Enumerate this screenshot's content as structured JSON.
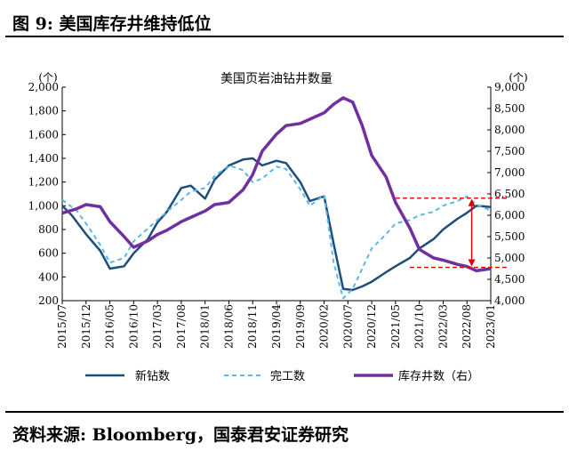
{
  "header": {
    "title": "图 9:  美国库存井维持低位"
  },
  "footer": {
    "source": "资料来源:  Bloomberg，国泰君安证券研究"
  },
  "colors": {
    "drilled": "#1F4E79",
    "completed": "#5BB8E8",
    "duc": "#7030A0",
    "annotation": "#E00000"
  },
  "chart_data": {
    "type": "line",
    "title": "美国页岩油钻井数量",
    "y_left": {
      "unit_label": "(个)",
      "min": 200,
      "max": 2000,
      "ticks": [
        200,
        400,
        600,
        800,
        1000,
        1200,
        1400,
        1600,
        1800,
        2000
      ],
      "tick_labels": [
        "200",
        "400",
        "600",
        "800",
        "1,000",
        "1,200",
        "1,400",
        "1,600",
        "1,800",
        "2,000"
      ]
    },
    "y_right": {
      "unit_label": "(个)",
      "min": 4000,
      "max": 9000,
      "ticks": [
        4000,
        4500,
        5000,
        5500,
        6000,
        6500,
        7000,
        7500,
        8000,
        8500,
        9000
      ],
      "tick_labels": [
        "4,000",
        "4,500",
        "5,000",
        "5,500",
        "6,000",
        "6,500",
        "7,000",
        "7,500",
        "8,000",
        "8,500",
        "9,000"
      ]
    },
    "x_tick_labels": [
      "2015/07",
      "2015/12",
      "2016/05",
      "2016/10",
      "2017/03",
      "2017/08",
      "2018/01",
      "2018/06",
      "2018/11",
      "2019/04",
      "2019/09",
      "2020/02",
      "2020/07",
      "2020/12",
      "2021/05",
      "2021/10",
      "2022/03",
      "2022/08",
      "2023/01"
    ],
    "series": [
      {
        "name": "新钻数",
        "axis": "left",
        "style": "solid",
        "points": [
          [
            "2015/07",
            1000
          ],
          [
            "2015/09",
            920
          ],
          [
            "2015/12",
            760
          ],
          [
            "2016/03",
            620
          ],
          [
            "2016/05",
            470
          ],
          [
            "2016/08",
            490
          ],
          [
            "2016/10",
            600
          ],
          [
            "2017/01",
            720
          ],
          [
            "2017/03",
            860
          ],
          [
            "2017/05",
            950
          ],
          [
            "2017/08",
            1150
          ],
          [
            "2017/10",
            1170
          ],
          [
            "2018/01",
            1060
          ],
          [
            "2018/03",
            1220
          ],
          [
            "2018/06",
            1340
          ],
          [
            "2018/09",
            1390
          ],
          [
            "2018/11",
            1400
          ],
          [
            "2019/01",
            1340
          ],
          [
            "2019/04",
            1380
          ],
          [
            "2019/06",
            1360
          ],
          [
            "2019/09",
            1200
          ],
          [
            "2019/11",
            1040
          ],
          [
            "2020/02",
            1080
          ],
          [
            "2020/04",
            680
          ],
          [
            "2020/06",
            300
          ],
          [
            "2020/08",
            290
          ],
          [
            "2020/10",
            320
          ],
          [
            "2020/12",
            360
          ],
          [
            "2021/03",
            440
          ],
          [
            "2021/05",
            490
          ],
          [
            "2021/08",
            560
          ],
          [
            "2021/10",
            640
          ],
          [
            "2022/01",
            720
          ],
          [
            "2022/03",
            800
          ],
          [
            "2022/06",
            890
          ],
          [
            "2022/08",
            940
          ],
          [
            "2022/10",
            1000
          ],
          [
            "2023/01",
            990
          ]
        ]
      },
      {
        "name": "完工数",
        "axis": "left",
        "style": "dashed",
        "points": [
          [
            "2015/07",
            1050
          ],
          [
            "2015/10",
            960
          ],
          [
            "2015/12",
            850
          ],
          [
            "2016/03",
            670
          ],
          [
            "2016/05",
            520
          ],
          [
            "2016/08",
            560
          ],
          [
            "2016/10",
            700
          ],
          [
            "2017/01",
            810
          ],
          [
            "2017/03",
            880
          ],
          [
            "2017/05",
            950
          ],
          [
            "2017/08",
            1050
          ],
          [
            "2017/10",
            1120
          ],
          [
            "2018/01",
            1150
          ],
          [
            "2018/03",
            1250
          ],
          [
            "2018/06",
            1340
          ],
          [
            "2018/09",
            1300
          ],
          [
            "2018/11",
            1200
          ],
          [
            "2019/01",
            1230
          ],
          [
            "2019/04",
            1330
          ],
          [
            "2019/06",
            1310
          ],
          [
            "2019/09",
            1140
          ],
          [
            "2019/11",
            1000
          ],
          [
            "2020/02",
            1090
          ],
          [
            "2020/04",
            520
          ],
          [
            "2020/06",
            220
          ],
          [
            "2020/08",
            300
          ],
          [
            "2020/10",
            470
          ],
          [
            "2020/12",
            640
          ],
          [
            "2021/03",
            760
          ],
          [
            "2021/05",
            850
          ],
          [
            "2021/08",
            880
          ],
          [
            "2021/10",
            920
          ],
          [
            "2022/01",
            950
          ],
          [
            "2022/03",
            1000
          ],
          [
            "2022/06",
            1040
          ],
          [
            "2022/08",
            1080
          ],
          [
            "2022/10",
            1010
          ],
          [
            "2023/01",
            960
          ]
        ]
      },
      {
        "name": "库存井数（右）",
        "axis": "right",
        "style": "solid",
        "points": [
          [
            "2015/07",
            6050
          ],
          [
            "2015/10",
            6150
          ],
          [
            "2015/12",
            6250
          ],
          [
            "2016/03",
            6200
          ],
          [
            "2016/05",
            5850
          ],
          [
            "2016/08",
            5500
          ],
          [
            "2016/10",
            5250
          ],
          [
            "2017/01",
            5400
          ],
          [
            "2017/03",
            5550
          ],
          [
            "2017/05",
            5650
          ],
          [
            "2017/08",
            5850
          ],
          [
            "2017/10",
            5950
          ],
          [
            "2018/01",
            6100
          ],
          [
            "2018/03",
            6250
          ],
          [
            "2018/06",
            6300
          ],
          [
            "2018/09",
            6600
          ],
          [
            "2018/11",
            6950
          ],
          [
            "2019/01",
            7500
          ],
          [
            "2019/04",
            7900
          ],
          [
            "2019/06",
            8100
          ],
          [
            "2019/09",
            8150
          ],
          [
            "2019/11",
            8250
          ],
          [
            "2020/02",
            8400
          ],
          [
            "2020/04",
            8600
          ],
          [
            "2020/06",
            8750
          ],
          [
            "2020/08",
            8650
          ],
          [
            "2020/10",
            8100
          ],
          [
            "2020/12",
            7400
          ],
          [
            "2021/03",
            6900
          ],
          [
            "2021/05",
            6300
          ],
          [
            "2021/08",
            5700
          ],
          [
            "2021/10",
            5200
          ],
          [
            "2022/01",
            5000
          ],
          [
            "2022/03",
            4950
          ],
          [
            "2022/06",
            4850
          ],
          [
            "2022/08",
            4800
          ],
          [
            "2022/10",
            4700
          ],
          [
            "2023/01",
            4750
          ]
        ]
      }
    ],
    "legend": {
      "position": "bottom"
    },
    "annotations": {
      "dashed_levels_right": [
        6400,
        4780
      ],
      "arrow": "double-headed vertical between the dashed levels"
    }
  }
}
